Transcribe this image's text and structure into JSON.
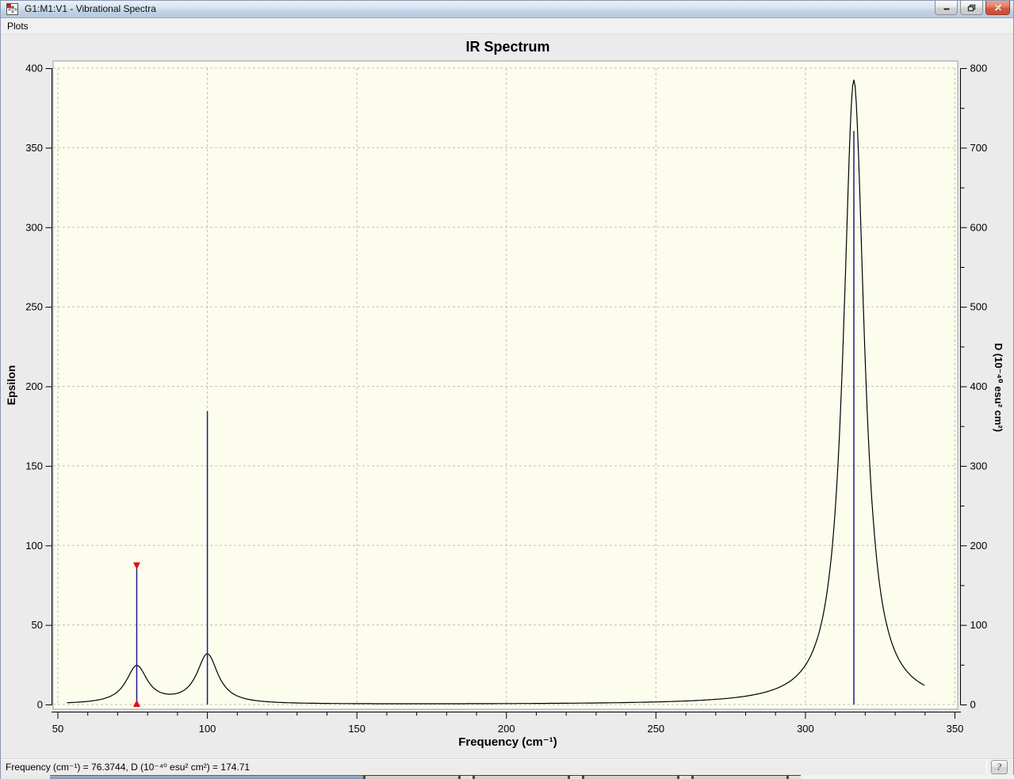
{
  "window": {
    "title": "G1:M1:V1 - Vibrational Spectra",
    "icon": "molecule-app-icon",
    "controls": {
      "minimize": "minimize",
      "restore": "restore",
      "close": "close"
    }
  },
  "menu": {
    "items": [
      {
        "label": "Plots"
      }
    ]
  },
  "chart_data": {
    "type": "line",
    "title": "IR Spectrum",
    "xlabel": "Frequency (cm⁻¹)",
    "ylabel_left": "Epsilon",
    "ylabel_right": "D (10⁻⁴⁰ esu² cm²)",
    "xlim": [
      50,
      350
    ],
    "x_ticks": [
      50,
      100,
      150,
      200,
      250,
      300,
      350
    ],
    "x_minor_step": 10,
    "ylim_left": [
      0,
      400
    ],
    "y_left_ticks": [
      0,
      50,
      100,
      150,
      200,
      250,
      300,
      350,
      400
    ],
    "ylim_right": [
      0,
      800
    ],
    "y_right_ticks": [
      0,
      100,
      200,
      300,
      400,
      500,
      600,
      700,
      800
    ],
    "y_right_minor_step": 50,
    "grid": true,
    "legend": "none",
    "sticks": [
      {
        "frequency": 76.3744,
        "D": 174.71,
        "selected": true
      },
      {
        "frequency": 100.0,
        "D": 369,
        "selected": false
      },
      {
        "frequency": 316.2,
        "D": 721,
        "selected": false
      }
    ],
    "curve_peaks": [
      {
        "center": 76.3744,
        "epsilon_max": 23.5,
        "hwhm": 4.3
      },
      {
        "center": 100.0,
        "epsilon_max": 31.0,
        "hwhm": 4.3
      },
      {
        "center": 316.2,
        "epsilon_max": 392.5,
        "hwhm": 4.2
      }
    ],
    "curve_range": [
      53,
      340
    ],
    "colors": {
      "curve": "#000000",
      "stick": "#1c1c8f",
      "selected_marker": "#dd1111",
      "canvas_bg": "#fdfdee",
      "grid": "#c0c0b4",
      "axis": "#000000"
    }
  },
  "status_bar": {
    "text": "Frequency (cm⁻¹) = 76.3744, D (10⁻⁴⁰ esu² cm²) = 174.71",
    "help_button": "?"
  }
}
